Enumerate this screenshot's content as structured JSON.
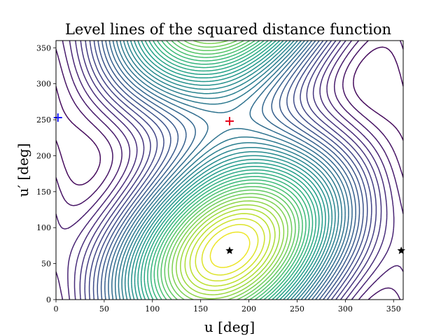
{
  "chart_data": {
    "type": "contour",
    "title": "Level lines of the squared distance function",
    "xlabel": "u [deg]",
    "ylabel": "u′ [deg]",
    "xlim": [
      0,
      360
    ],
    "ylim": [
      0,
      360
    ],
    "xticks": [
      0,
      50,
      100,
      150,
      200,
      250,
      300,
      350
    ],
    "yticks": [
      0,
      50,
      100,
      150,
      200,
      250,
      300,
      350
    ],
    "grid": false,
    "colormap": "viridis",
    "contour_levels": 40,
    "points": [
      {
        "kind": "maximum",
        "marker": "plus",
        "color": "#e8001a",
        "x": 180,
        "y": 248
      },
      {
        "kind": "minimum",
        "marker": "plus",
        "color": "#1a1aff",
        "x": 2,
        "y": 253
      },
      {
        "kind": "saddle",
        "marker": "star",
        "color": "#000000",
        "x": 180,
        "y": 68
      },
      {
        "kind": "saddle",
        "marker": "star",
        "color": "#000000",
        "x": 358,
        "y": 68
      }
    ]
  }
}
